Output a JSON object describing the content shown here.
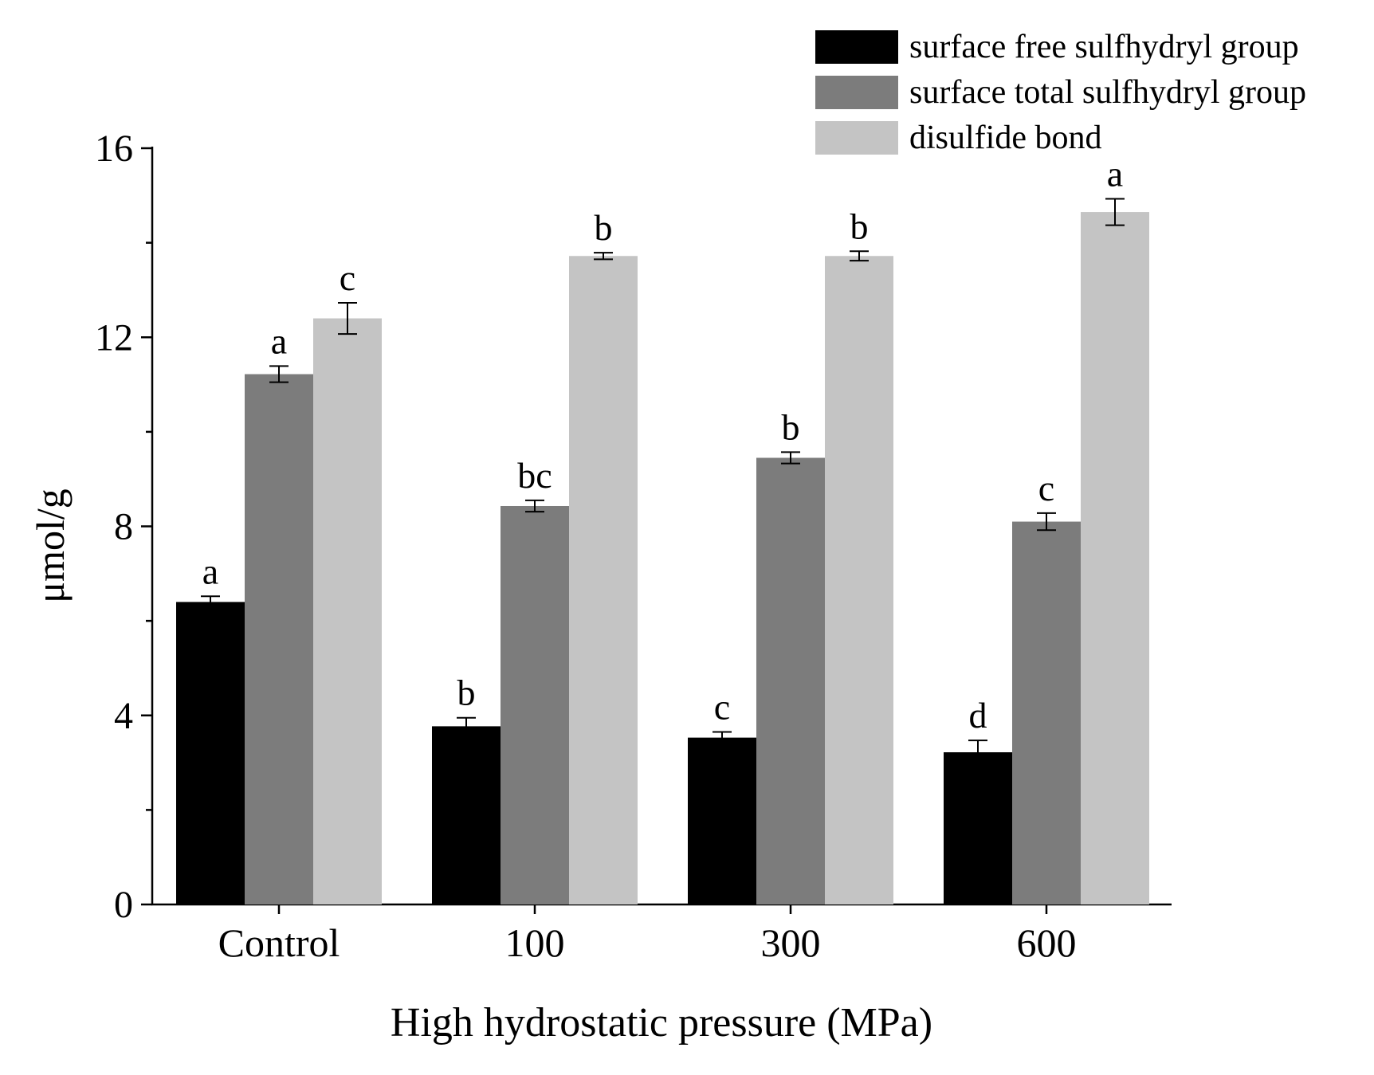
{
  "chart_data": {
    "type": "bar",
    "xlabel": "High hydrostatic pressure (MPa)",
    "ylabel": "μmol/g",
    "ylim": [
      0,
      16
    ],
    "yticks": [
      0,
      4,
      8,
      12,
      16
    ],
    "categories": [
      "Control",
      "100",
      "300",
      "600"
    ],
    "legend_position": "top-right",
    "series": [
      {
        "name": "surface free sulfhydryl group",
        "color": "#000000",
        "values": [
          6.4,
          3.77,
          3.53,
          3.22
        ],
        "errors": [
          0.12,
          0.18,
          0.12,
          0.25
        ],
        "letters": [
          "a",
          "b",
          "c",
          "d"
        ]
      },
      {
        "name": "surface total sulfhydryl group",
        "color": "#7c7c7c",
        "values": [
          11.22,
          8.43,
          9.45,
          8.1
        ],
        "errors": [
          0.17,
          0.12,
          0.12,
          0.18
        ],
        "letters": [
          "a",
          "bc",
          "b",
          "c"
        ]
      },
      {
        "name": "disulfide bond",
        "color": "#c4c4c4",
        "values": [
          12.4,
          13.72,
          13.72,
          14.65
        ],
        "errors": [
          0.33,
          0.07,
          0.1,
          0.28
        ],
        "letters": [
          "c",
          "b",
          "b",
          "a"
        ]
      }
    ]
  }
}
